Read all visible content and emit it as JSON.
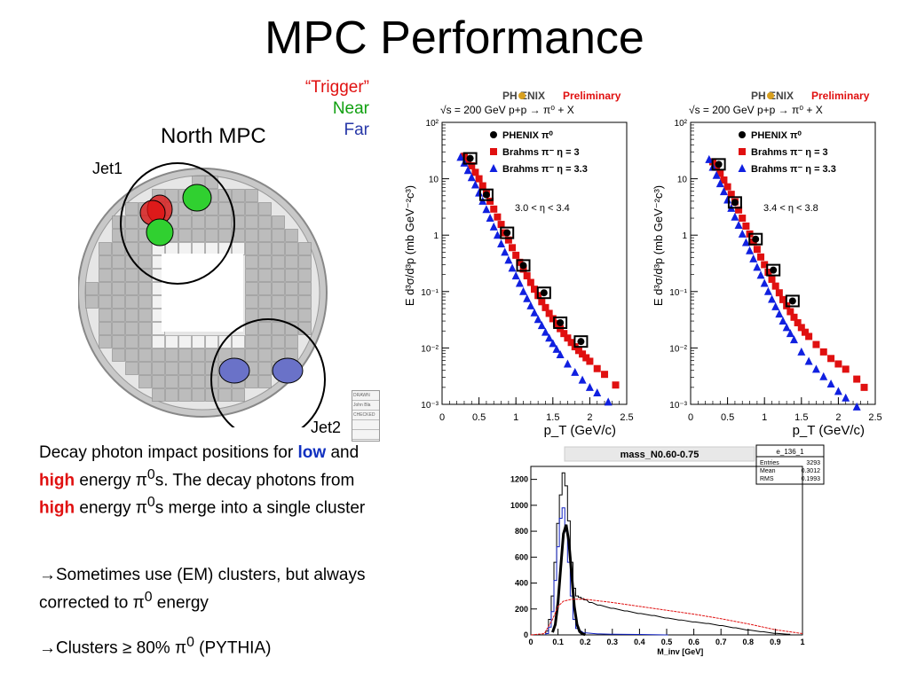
{
  "slide": {
    "title": "MPC Performance",
    "legend": {
      "trigger": "“Trigger”",
      "near": "Near",
      "far": "Far",
      "colors": {
        "trigger": "#e01010",
        "near": "#10a010",
        "far": "#2838a8"
      }
    },
    "detector": {
      "title": "North MPC",
      "jet1": "Jet1",
      "jet2": "Jet2",
      "stamp": [
        "DRAWN",
        "John Bla",
        "CHECKED",
        "",
        ""
      ]
    },
    "text": {
      "p1_a": "Decay photon impact positions for ",
      "low": "low",
      "p1_b": " and ",
      "high": "high",
      "p1_c": " energy π",
      "sup0": "0",
      "p1_d": "s. The decay photons from ",
      "p1_e": " energy π",
      "p1_f": "s merge into a single cluster",
      "p2_a": "→Sometimes use (EM) clusters, but always corrected to π",
      "p2_b": " energy",
      "p3_a": "→Clusters ≥ 80% π",
      "p3_b": " (PYTHIA)"
    }
  },
  "chart_data": [
    {
      "type": "scatter",
      "header": "PH   ENIX",
      "preliminary": "Preliminary",
      "subtitle": "√s = 200 GeV p+p → π⁰ + X",
      "annotation": "3.0 < η < 3.4",
      "xlabel": "p_T (GeV/c)",
      "ylabel": "E d³σ/d³p (mb GeV⁻²c³)",
      "log_y": true,
      "xlim": [
        0,
        2.5
      ],
      "ylim": [
        0.001,
        100
      ],
      "x_ticks": [
        "0",
        "0.5",
        "1",
        "1.5",
        "2",
        "2.5"
      ],
      "y_ticks": [
        "10⁻³",
        "10⁻²",
        "10⁻¹",
        "1",
        "10",
        "10²"
      ],
      "legend": [
        "PHENIX π⁰",
        "Brahms π⁻ η = 3",
        "Brahms π⁻ η = 3.3"
      ],
      "series": [
        {
          "name": "PHENIX π⁰",
          "color": "#000000",
          "marker": "circle",
          "x": [
            0.38,
            0.6,
            0.88,
            1.1,
            1.38,
            1.6,
            1.88
          ],
          "y": [
            23,
            5.2,
            1.1,
            0.29,
            0.095,
            0.028,
            0.013
          ]
        },
        {
          "name": "Brahms π⁻ η = 3",
          "color": "#e01010",
          "marker": "square",
          "x": [
            0.3,
            0.35,
            0.4,
            0.45,
            0.5,
            0.55,
            0.6,
            0.65,
            0.7,
            0.75,
            0.8,
            0.85,
            0.9,
            0.95,
            1.0,
            1.05,
            1.1,
            1.15,
            1.2,
            1.25,
            1.3,
            1.35,
            1.4,
            1.45,
            1.5,
            1.55,
            1.6,
            1.65,
            1.7,
            1.75,
            1.8,
            1.85,
            1.9,
            1.95,
            2.0,
            2.1,
            2.2,
            2.35
          ],
          "y": [
            25,
            22,
            17,
            13,
            10,
            7.5,
            5.5,
            4,
            2.9,
            2.1,
            1.55,
            1.1,
            0.82,
            0.6,
            0.44,
            0.33,
            0.25,
            0.19,
            0.145,
            0.11,
            0.085,
            0.066,
            0.052,
            0.041,
            0.033,
            0.027,
            0.022,
            0.018,
            0.015,
            0.0125,
            0.0105,
            0.009,
            0.0078,
            0.0067,
            0.0058,
            0.0043,
            0.0034,
            0.0022
          ]
        },
        {
          "name": "Brahms π⁻ η = 3.3",
          "color": "#1020e0",
          "marker": "triangle",
          "x": [
            0.25,
            0.3,
            0.35,
            0.4,
            0.45,
            0.5,
            0.55,
            0.6,
            0.65,
            0.7,
            0.75,
            0.8,
            0.85,
            0.9,
            0.95,
            1.0,
            1.05,
            1.1,
            1.15,
            1.2,
            1.25,
            1.3,
            1.35,
            1.4,
            1.45,
            1.5,
            1.55,
            1.6,
            1.7,
            1.8,
            1.9,
            2.0,
            2.1,
            2.25
          ],
          "y": [
            24,
            19,
            14,
            10.5,
            7.8,
            5.6,
            4,
            2.85,
            2.0,
            1.4,
            1.0,
            0.7,
            0.5,
            0.36,
            0.26,
            0.19,
            0.14,
            0.1,
            0.075,
            0.056,
            0.042,
            0.032,
            0.025,
            0.019,
            0.015,
            0.012,
            0.0095,
            0.0076,
            0.0052,
            0.0037,
            0.0027,
            0.002,
            0.0016,
            0.0011
          ]
        }
      ]
    },
    {
      "type": "scatter",
      "header": "PH   ENIX",
      "preliminary": "Preliminary",
      "subtitle": "√s = 200 GeV p+p → π⁰ + X",
      "annotation": "3.4 < η < 3.8",
      "xlabel": "p_T (GeV/c)",
      "ylabel": "E d³σ/d³p (mb GeV⁻²c³)",
      "log_y": true,
      "xlim": [
        0,
        2.5
      ],
      "ylim": [
        0.001,
        100
      ],
      "x_ticks": [
        "0",
        "0.5",
        "1",
        "1.5",
        "2",
        "2.5"
      ],
      "y_ticks": [
        "10⁻³",
        "10⁻²",
        "10⁻¹",
        "1",
        "10",
        "10²"
      ],
      "legend": [
        "PHENIX π⁰",
        "Brahms π⁻ η = 3",
        "Brahms π⁻ η = 3.3"
      ],
      "series": [
        {
          "name": "PHENIX π⁰",
          "color": "#000000",
          "marker": "circle",
          "x": [
            0.38,
            0.6,
            0.88,
            1.12,
            1.38
          ],
          "y": [
            18,
            3.8,
            0.85,
            0.24,
            0.068
          ]
        },
        {
          "name": "Brahms π⁻ η = 3",
          "color": "#e01010",
          "marker": "square",
          "x": [
            0.3,
            0.35,
            0.4,
            0.45,
            0.5,
            0.55,
            0.6,
            0.65,
            0.7,
            0.75,
            0.8,
            0.85,
            0.9,
            0.95,
            1.0,
            1.05,
            1.1,
            1.15,
            1.2,
            1.25,
            1.3,
            1.35,
            1.4,
            1.45,
            1.5,
            1.55,
            1.6,
            1.7,
            1.8,
            1.9,
            2.0,
            2.1,
            2.25,
            2.35
          ],
          "y": [
            20,
            16,
            12.5,
            9.5,
            7.2,
            5.3,
            3.9,
            2.8,
            2.0,
            1.45,
            1.05,
            0.76,
            0.56,
            0.41,
            0.3,
            0.22,
            0.165,
            0.125,
            0.095,
            0.072,
            0.056,
            0.044,
            0.035,
            0.028,
            0.023,
            0.019,
            0.016,
            0.0115,
            0.0085,
            0.0065,
            0.0052,
            0.0042,
            0.0028,
            0.002
          ]
        },
        {
          "name": "Brahms π⁻ η = 3.3",
          "color": "#1020e0",
          "marker": "triangle",
          "x": [
            0.25,
            0.3,
            0.35,
            0.4,
            0.45,
            0.5,
            0.55,
            0.6,
            0.65,
            0.7,
            0.75,
            0.8,
            0.85,
            0.9,
            0.95,
            1.0,
            1.05,
            1.1,
            1.15,
            1.2,
            1.25,
            1.3,
            1.35,
            1.4,
            1.5,
            1.6,
            1.7,
            1.8,
            1.9,
            2.0,
            2.1,
            2.25
          ],
          "y": [
            22,
            16,
            11.5,
            8.2,
            5.9,
            4.2,
            3.0,
            2.1,
            1.5,
            1.05,
            0.74,
            0.53,
            0.38,
            0.27,
            0.195,
            0.14,
            0.1,
            0.073,
            0.054,
            0.04,
            0.03,
            0.023,
            0.018,
            0.014,
            0.0085,
            0.0058,
            0.0042,
            0.0031,
            0.0023,
            0.0017,
            0.0013,
            0.0009
          ]
        }
      ]
    },
    {
      "type": "line",
      "title": "mass_N0.60-0.75",
      "stats": {
        "name": "e_136_1",
        "rows": [
          [
            "Entries",
            "3293"
          ],
          [
            "Mean",
            "0.3012"
          ],
          [
            "RMS",
            "0.1993"
          ]
        ]
      },
      "xlabel": "M_inv [GeV]",
      "xlim": [
        0,
        1
      ],
      "ylim": [
        0,
        1300
      ],
      "x_ticks": [
        "0",
        "0.1",
        "0.2",
        "0.3",
        "0.4",
        "0.5",
        "0.6",
        "0.7",
        "0.8",
        "0.9",
        "1"
      ],
      "y_ticks": [
        "0",
        "200",
        "400",
        "600",
        "800",
        "1000",
        "1200"
      ],
      "series": [
        {
          "name": "",
          "color": "#000000",
          "style": "hist",
          "bin_width": 0.01,
          "x": [
            0.06,
            0.07,
            0.08,
            0.09,
            0.1,
            0.11,
            0.12,
            0.13,
            0.14,
            0.15,
            0.16,
            0.17,
            0.18,
            0.19,
            0.2,
            0.22,
            0.25,
            0.3,
            0.35,
            0.4,
            0.45,
            0.5,
            0.55,
            0.6,
            0.65,
            0.7,
            0.75,
            0.8,
            0.85,
            0.9,
            0.95
          ],
          "y": [
            30,
            120,
            300,
            560,
            860,
            1080,
            1250,
            1150,
            880,
            560,
            360,
            300,
            290,
            280,
            270,
            250,
            230,
            205,
            185,
            165,
            150,
            130,
            115,
            100,
            88,
            72,
            55,
            38,
            25,
            12,
            5
          ]
        },
        {
          "name": "",
          "color": "#1020c0",
          "style": "hist",
          "bin_width": 0.01,
          "x": [
            0.06,
            0.07,
            0.08,
            0.09,
            0.1,
            0.11,
            0.12,
            0.13,
            0.14,
            0.15,
            0.16,
            0.17,
            0.18,
            0.2,
            0.25,
            0.3,
            0.4,
            0.5
          ],
          "y": [
            10,
            60,
            180,
            420,
            680,
            900,
            980,
            800,
            560,
            300,
            120,
            50,
            30,
            15,
            8,
            5,
            3,
            0
          ]
        },
        {
          "name": "",
          "color": "#000000",
          "style": "thick",
          "x": [
            0.08,
            0.09,
            0.1,
            0.11,
            0.12,
            0.13,
            0.14,
            0.15,
            0.16,
            0.17,
            0.18,
            0.19,
            0.2
          ],
          "y": [
            20,
            80,
            250,
            520,
            780,
            850,
            720,
            470,
            220,
            80,
            25,
            8,
            2
          ]
        },
        {
          "name": "",
          "color": "#e01010",
          "style": "dashed",
          "x": [
            0.0,
            0.05,
            0.08,
            0.1,
            0.12,
            0.15,
            0.2,
            0.3,
            0.4,
            0.5,
            0.6,
            0.7,
            0.8,
            0.9,
            1.0
          ],
          "y": [
            0,
            10,
            120,
            220,
            260,
            275,
            275,
            250,
            220,
            190,
            160,
            125,
            85,
            40,
            10
          ]
        }
      ]
    }
  ]
}
